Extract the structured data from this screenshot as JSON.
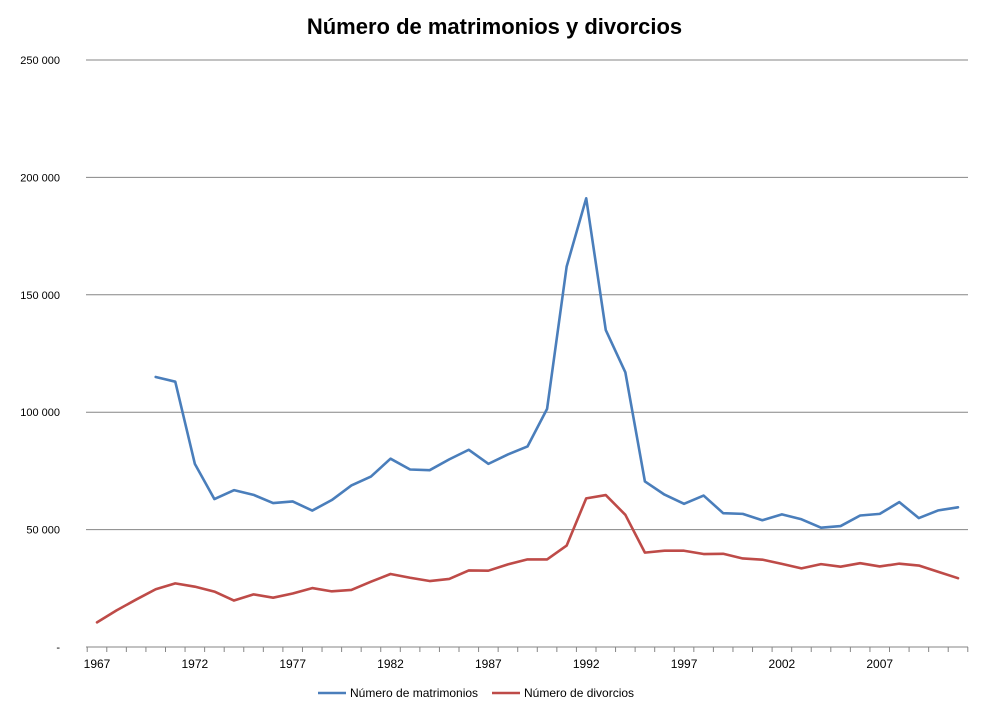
{
  "chart_data": {
    "type": "line",
    "title": "Número de matrimonios y divorcios",
    "xlabel": "",
    "ylabel": "",
    "x": [
      1967,
      1968,
      1969,
      1970,
      1971,
      1972,
      1973,
      1974,
      1975,
      1976,
      1977,
      1978,
      1979,
      1980,
      1981,
      1982,
      1983,
      1984,
      1985,
      1986,
      1987,
      1988,
      1989,
      1990,
      1991,
      1992,
      1993,
      1994,
      1995,
      1996,
      1997,
      1998,
      1999,
      2000,
      2001,
      2002,
      2003,
      2004,
      2005,
      2006,
      2007,
      2008,
      2009,
      2010,
      2011
    ],
    "xlim": [
      1967,
      2011
    ],
    "ylim": [
      0,
      250000
    ],
    "y_ticks": [
      0,
      50000,
      100000,
      150000,
      200000,
      250000
    ],
    "y_tick_labels": [
      "-",
      "50 000",
      "100 000",
      "150 000",
      "200 000",
      "250 000"
    ],
    "x_tick_labels": [
      "1967",
      "1972",
      "1977",
      "1982",
      "1987",
      "1992",
      "1997",
      "2002",
      "2007"
    ],
    "grid": true,
    "legend_position": "bottom",
    "series": [
      {
        "name": "Número de matrimonios",
        "color": "#4a7ebb",
        "values": [
          null,
          null,
          null,
          115000,
          113000,
          78000,
          63000,
          66800,
          64800,
          61300,
          62000,
          58100,
          62600,
          68800,
          72600,
          80200,
          75600,
          75300,
          79900,
          84000,
          78000,
          82000,
          85400,
          101400,
          162000,
          191100,
          135000,
          117000,
          70500,
          64900,
          61000,
          64500,
          57000,
          56700,
          54000,
          56500,
          54400,
          50800,
          51500,
          56000,
          56700,
          61700,
          54900,
          58200,
          59500
        ]
      },
      {
        "name": "Número de divorcios",
        "color": "#be4b48",
        "values": [
          10500,
          15600,
          20200,
          24600,
          27100,
          25700,
          23600,
          19800,
          22400,
          21000,
          22800,
          25100,
          23700,
          24300,
          27800,
          31100,
          29500,
          28100,
          29000,
          32600,
          32500,
          35200,
          37300,
          37300,
          43200,
          63300,
          64700,
          56300,
          40200,
          41000,
          41000,
          39600,
          39700,
          37700,
          37200,
          35400,
          33500,
          35300,
          34200,
          35700,
          34300,
          35500,
          34700,
          32000,
          29300
        ]
      }
    ]
  }
}
